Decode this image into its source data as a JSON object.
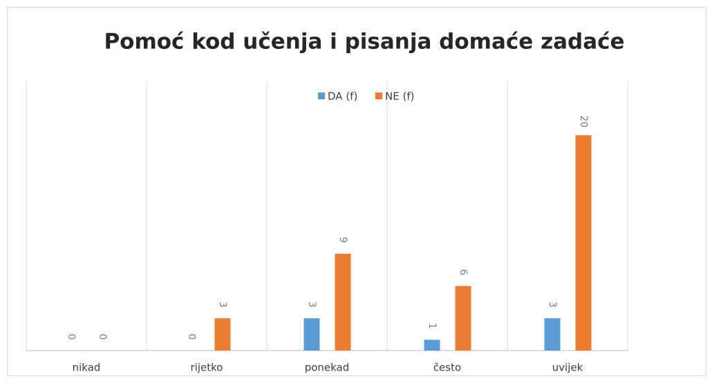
{
  "chart_data": {
    "type": "bar",
    "title": "Pomoć kod učenja i pisanja domaće zadaće",
    "categories": [
      "nikad",
      "rijetko",
      "ponekad",
      "često",
      "uvijek"
    ],
    "series": [
      {
        "name": "DA (f)",
        "color": "#5b9bd5",
        "values": [
          0,
          0,
          3,
          1,
          3
        ]
      },
      {
        "name": "NE (f)",
        "color": "#ed7d31",
        "values": [
          0,
          3,
          9,
          6,
          20
        ]
      }
    ],
    "ylim": [
      0,
      25
    ],
    "legend": "top"
  }
}
